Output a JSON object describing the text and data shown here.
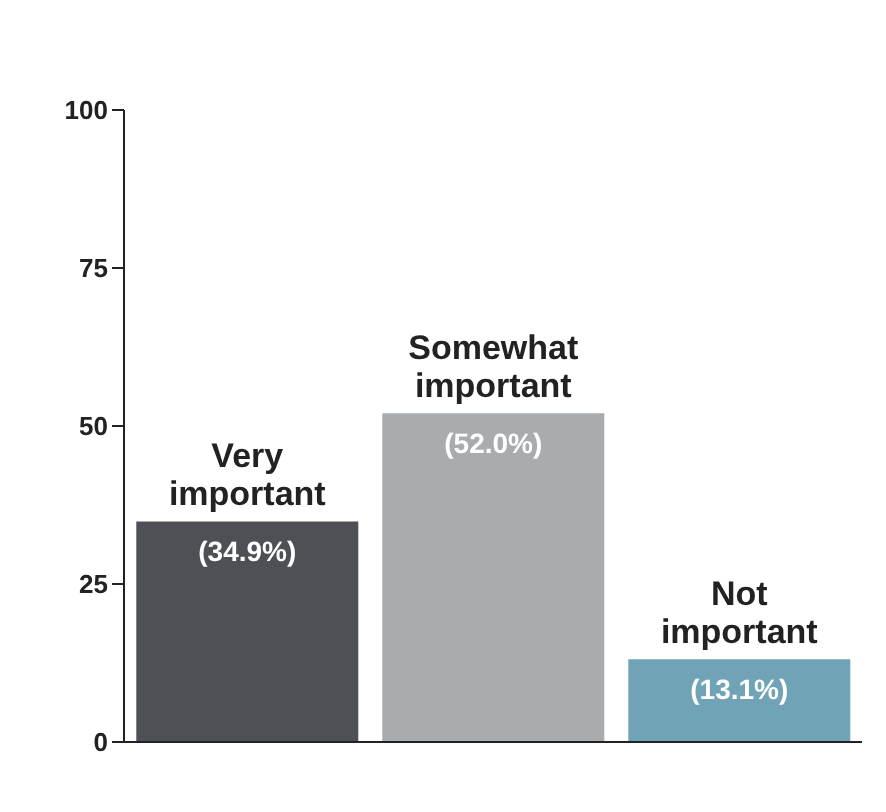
{
  "chart_data": {
    "type": "bar",
    "categories": [
      "Very important",
      "Somewhat important",
      "Not important"
    ],
    "values": [
      34.9,
      52.0,
      13.1
    ],
    "colors": [
      "#4d5155",
      "#a9acaf",
      "#6fa3b5"
    ],
    "value_labels": [
      "(34.9%)",
      "(52.0%)",
      "(13.1%)"
    ],
    "ylim": [
      0,
      100
    ],
    "yticks": [
      0,
      25,
      50,
      75,
      100
    ],
    "grid": false,
    "legend": false
  }
}
